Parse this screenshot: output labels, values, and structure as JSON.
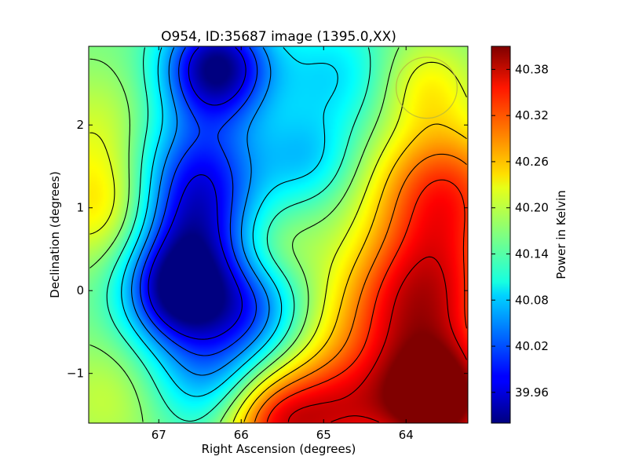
{
  "chart_data": {
    "type": "heatmap",
    "title": "O954, ID:35687 image (1395.0,XX)",
    "xlabel": "Right Ascension (degrees)",
    "ylabel": "Declination (degrees)",
    "colorbar_label": "Power in Kelvin",
    "colormap": "jet",
    "xlim": [
      67.85,
      63.25
    ],
    "ylim": [
      -1.6,
      2.95
    ],
    "xaxis_inverted": true,
    "xticks": [
      67,
      66,
      65,
      64
    ],
    "xtick_labels": [
      "67",
      "66",
      "65",
      "64"
    ],
    "yticks": [
      -1,
      0,
      1,
      2
    ],
    "ytick_labels": [
      "−1",
      "0",
      "1",
      "2"
    ],
    "clim": [
      39.92,
      40.41
    ],
    "colorbar_ticks": [
      39.96,
      40.02,
      40.08,
      40.14,
      40.2,
      40.26,
      40.32,
      40.38
    ],
    "colorbar_tick_labels": [
      "39.96",
      "40.02",
      "40.08",
      "40.14",
      "40.20",
      "40.26",
      "40.32",
      "40.38"
    ],
    "contour_levels": [
      39.97,
      40.01,
      40.05,
      40.09,
      40.13,
      40.17,
      40.21,
      40.25,
      40.29,
      40.33,
      40.37
    ],
    "features": [
      {
        "ra": 66.75,
        "dec": 0.0,
        "value": 39.93,
        "kind": "minimum"
      },
      {
        "ra": 66.3,
        "dec": 2.65,
        "value": 39.94,
        "kind": "minimum"
      },
      {
        "ra": 66.3,
        "dec": 1.15,
        "value": 40.0,
        "kind": "local minimum"
      },
      {
        "ra": 63.65,
        "dec": -1.35,
        "value": 40.41,
        "kind": "maximum"
      },
      {
        "ra": 63.55,
        "dec": 1.25,
        "value": 40.3,
        "kind": "local maximum"
      },
      {
        "ra": 67.6,
        "dec": 1.05,
        "value": 40.22,
        "kind": "local maximum"
      },
      {
        "ra": 65.55,
        "dec": 0.5,
        "value": 40.14,
        "kind": "local maximum"
      },
      {
        "ra": 63.75,
        "dec": 2.5,
        "value": 40.22,
        "kind": "local maximum"
      },
      {
        "ra": 65.6,
        "dec": -1.55,
        "value": 40.32,
        "kind": "local maximum"
      }
    ],
    "beam_circle": {
      "ra": 63.75,
      "dec": 2.45,
      "radius_deg": 0.37
    },
    "grid": false
  }
}
